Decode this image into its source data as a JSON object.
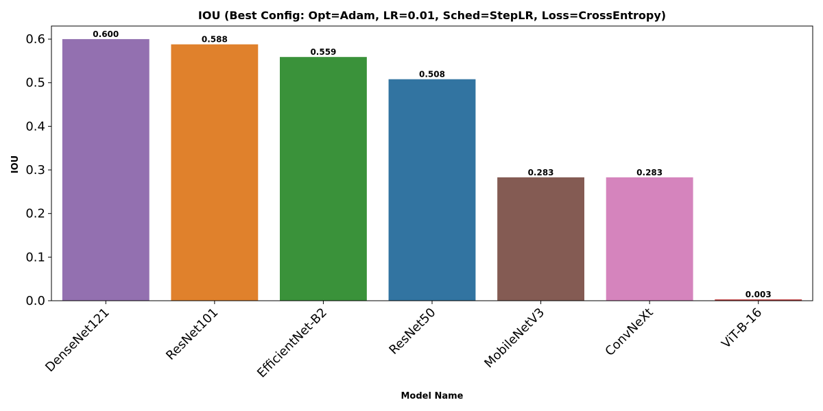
{
  "chart_data": {
    "type": "bar",
    "title": "IOU (Best Config: Opt=Adam, LR=0.01, Sched=StepLR, Loss=CrossEntropy)",
    "xlabel": "Model Name",
    "ylabel": "IOU",
    "categories": [
      "DenseNet121",
      "ResNet101",
      "EfficientNet-B2",
      "ResNet50",
      "MobileNetV3",
      "ConvNeXt",
      "ViT-B-16"
    ],
    "values": [
      0.6,
      0.588,
      0.559,
      0.508,
      0.283,
      0.283,
      0.003
    ],
    "value_labels": [
      "0.600",
      "0.588",
      "0.559",
      "0.508",
      "0.283",
      "0.283",
      "0.003"
    ],
    "colors": [
      "#9370b0",
      "#e0812c",
      "#3a923a",
      "#3274a1",
      "#845b53",
      "#d584bd",
      "#c03d3e"
    ],
    "ylim": [
      0,
      0.63
    ],
    "yticks": [
      0.0,
      0.1,
      0.2,
      0.3,
      0.4,
      0.5,
      0.6
    ],
    "ytick_labels": [
      "0.0",
      "0.1",
      "0.2",
      "0.3",
      "0.4",
      "0.5",
      "0.6"
    ],
    "grid": false,
    "legend": "none"
  }
}
